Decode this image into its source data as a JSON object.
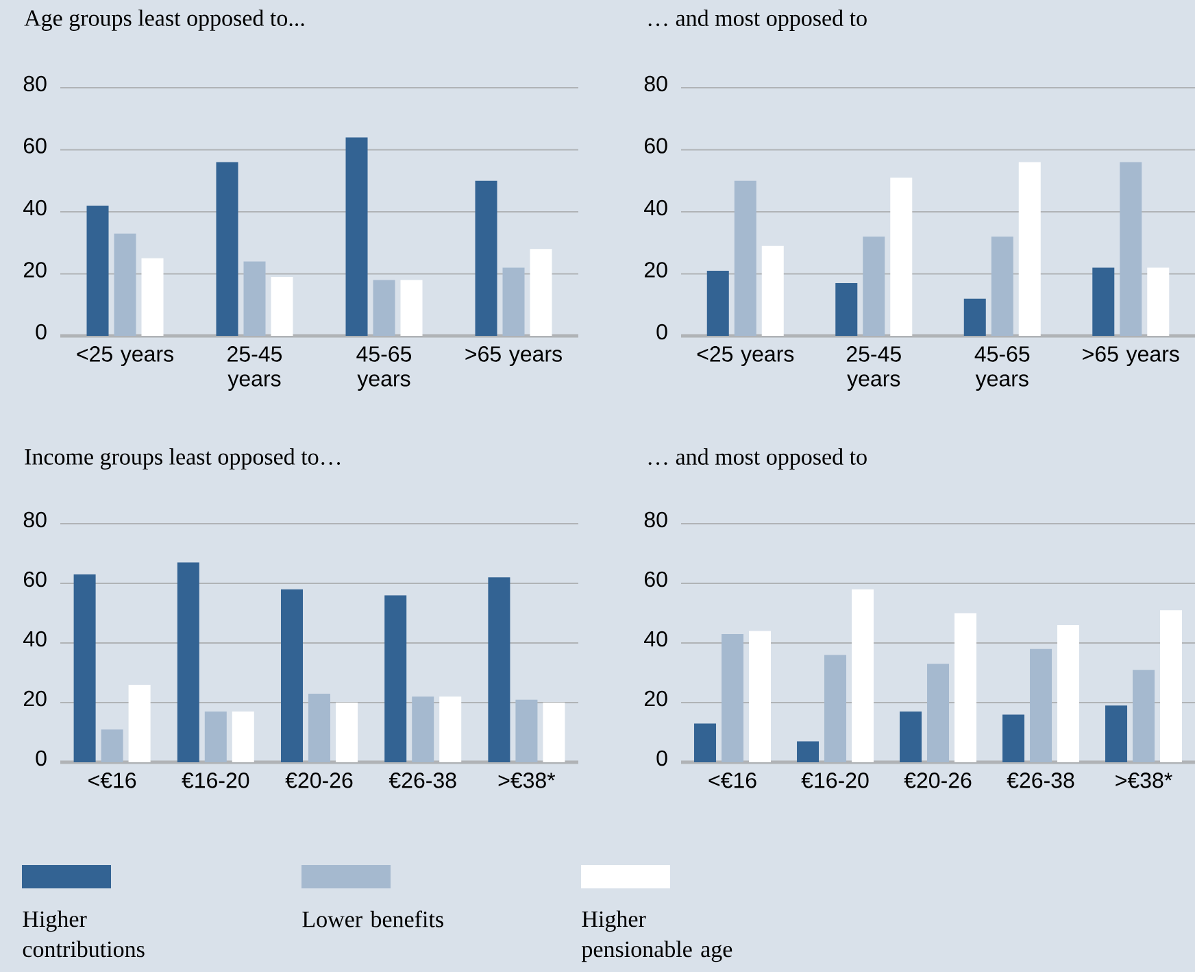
{
  "chart_data": [
    {
      "type": "bar",
      "title": "Age groups least opposed to...",
      "categories": [
        "<25 years",
        "25-45 years",
        "45-65 years",
        ">65 years"
      ],
      "ylim": [
        0,
        80
      ],
      "yticks": [
        0,
        20,
        40,
        60,
        80
      ],
      "grid": "y",
      "legend": "bottom",
      "series": [
        {
          "name": "Higher contributions",
          "color": "#336393",
          "values": [
            42,
            56,
            64,
            50
          ]
        },
        {
          "name": "Lower benefits",
          "color": "#a5b9cf",
          "values": [
            33,
            24,
            18,
            22
          ]
        },
        {
          "name": "Higher pensionable age",
          "color": "#ffffff",
          "values": [
            25,
            19,
            18,
            28
          ]
        }
      ]
    },
    {
      "type": "bar",
      "title": "… and most opposed to",
      "categories": [
        "<25 years",
        "25-45 years",
        "45-65 years",
        ">65 years"
      ],
      "ylim": [
        0,
        80
      ],
      "yticks": [
        0,
        20,
        40,
        60,
        80
      ],
      "grid": "y",
      "series": [
        {
          "color": "#336393",
          "values": [
            21,
            17,
            12,
            22
          ]
        },
        {
          "color": "#a5b9cf",
          "values": [
            50,
            32,
            32,
            56
          ]
        },
        {
          "color": "#ffffff",
          "values": [
            29,
            51,
            56,
            22
          ]
        }
      ]
    },
    {
      "type": "bar",
      "title": "Income groups least opposed to…",
      "categories": [
        "<€16",
        "€16-20",
        "€20-26",
        "€26-38",
        ">€38*"
      ],
      "ylim": [
        0,
        80
      ],
      "yticks": [
        0,
        20,
        40,
        60,
        80
      ],
      "grid": "y",
      "series": [
        {
          "color": "#336393",
          "values": [
            63,
            67,
            58,
            56,
            62
          ]
        },
        {
          "color": "#a5b9cf",
          "values": [
            11,
            17,
            23,
            22,
            21
          ]
        },
        {
          "color": "#ffffff",
          "values": [
            26,
            17,
            20,
            22,
            20
          ]
        }
      ]
    },
    {
      "type": "bar",
      "title": "… and most opposed to",
      "categories": [
        "<€16",
        "€16-20",
        "€20-26",
        "€26-38",
        ">€38*"
      ],
      "ylim": [
        0,
        80
      ],
      "yticks": [
        0,
        20,
        40,
        60,
        80
      ],
      "grid": "y",
      "series": [
        {
          "color": "#336393",
          "values": [
            13,
            7,
            17,
            16,
            19
          ]
        },
        {
          "color": "#a5b9cf",
          "values": [
            43,
            36,
            33,
            38,
            31
          ]
        },
        {
          "color": "#ffffff",
          "values": [
            44,
            58,
            50,
            46,
            51
          ]
        }
      ]
    }
  ]
}
